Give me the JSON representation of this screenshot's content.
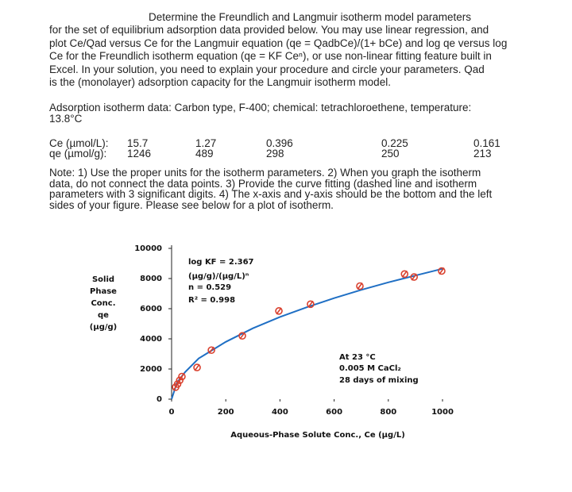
{
  "document": {
    "problem_lines": [
      "Determine the Freundlich and Langmuir isotherm model parameters",
      "for the set of equilibrium adsorption data provided below. You may use linear regression, and",
      "plot Ce/Qad versus Ce for the Langmuir equation (qe = QadbCe)/(1+ bCe) and log qe versus log",
      "Ce for the Freundlich isotherm equation (qe = KF Ceⁿ), or use non-linear fitting feature built in",
      "Excel.  In your solution, you need to explain your procedure and circle your parameters.   Qad",
      "is the (monolayer) adsorption capacity for the Langmuir isotherm model."
    ],
    "data_lines": [
      "Adsorption isotherm data:  Carbon type, F-400; chemical: tetrachloroethene, temperature:",
      "13.8°C"
    ],
    "table": {
      "rows": [
        {
          "label": "Ce (µmol/L):",
          "values": [
            15.7,
            1.27,
            0.396,
            0.225,
            0.161
          ]
        },
        {
          "label": "qe (µmol/g):",
          "values": [
            1246,
            489,
            298,
            250,
            213
          ]
        }
      ]
    },
    "note_lines": [
      "Note:  1) Use the proper units for the isotherm parameters. 2) When you graph the isotherm",
      "data, do not connect the data points.  3) Provide the curve fitting (dashed line and isotherm",
      "parameters with 3 significant digits. 4) The x-axis and y-axis should be the bottom and the left",
      "sides of your figure.   Please see below for a plot of isotherm."
    ]
  },
  "chart_data": {
    "type": "scatter",
    "xlabel": "Aqueous-Phase Solute Conc., Ce  (µg/L)",
    "ylabel": [
      "Solid",
      "Phase",
      "Conc.",
      "qe",
      "(µg/g)"
    ],
    "xlim": [
      0,
      1000
    ],
    "xticks": [
      0,
      200,
      400,
      600,
      800,
      1000
    ],
    "ylim": [
      0,
      10000
    ],
    "yticks": [
      0,
      2000,
      4000,
      6000,
      8000,
      10000
    ],
    "series": [
      {
        "color": "#d9412f",
        "x": [
          15,
          22,
          30,
          38,
          94,
          147,
          261,
          396,
          513,
          695,
          860,
          895,
          997
        ],
        "values": [
          800,
          1000,
          1250,
          1500,
          2100,
          3250,
          4200,
          5850,
          6300,
          7500,
          8300,
          8100,
          8500
        ]
      }
    ],
    "fit": {
      "color": "#1f6fc4",
      "x": [
        0,
        20,
        50,
        100,
        200,
        300,
        400,
        500,
        600,
        700,
        800,
        900,
        1000
      ],
      "values": [
        0,
        1100,
        1800,
        2700,
        3800,
        4700,
        5450,
        6100,
        6700,
        7250,
        7750,
        8200,
        8650
      ]
    },
    "annotations": [
      "log KF = 2.367",
      "(µg/g)/(µg/L)ⁿ",
      "n = 0.529",
      "R² = 0.998",
      "At 23 °C",
      "0.005 M CaCl₂",
      "28 days of mixing"
    ]
  }
}
